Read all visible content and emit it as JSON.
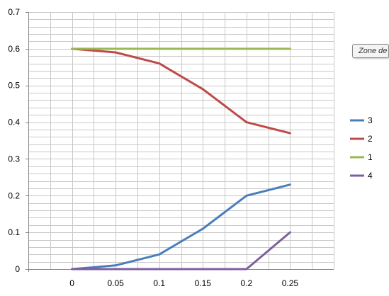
{
  "chart_data": {
    "type": "line",
    "title": "",
    "xlabel": "",
    "ylabel": "",
    "x": [
      0,
      0.05,
      0.1,
      0.15,
      0.2,
      0.25
    ],
    "x_tick_labels": [
      "0",
      "0.05",
      "0.1",
      "0.15",
      "0.2",
      "0.25"
    ],
    "y_tick_labels": [
      "0",
      "0.1",
      "0.2",
      "0.3",
      "0.4",
      "0.5",
      "0.6",
      "0.7"
    ],
    "ylim": [
      0,
      0.7
    ],
    "grid": true,
    "legend_position": "right",
    "series": [
      {
        "name": "3",
        "color": "#4a7ebb",
        "values": [
          0,
          0.01,
          0.04,
          0.11,
          0.2,
          0.23
        ]
      },
      {
        "name": "2",
        "color": "#be4b48",
        "values": [
          0.6,
          0.59,
          0.56,
          0.49,
          0.4,
          0.37
        ]
      },
      {
        "name": "1",
        "color": "#98b954",
        "values": [
          0.6,
          0.6,
          0.6,
          0.6,
          0.6,
          0.6
        ]
      },
      {
        "name": "4",
        "color": "#7d5fa0",
        "values": [
          0,
          0,
          0,
          0,
          0,
          0.1
        ]
      }
    ]
  },
  "tooltip": {
    "text": "Zone de"
  }
}
